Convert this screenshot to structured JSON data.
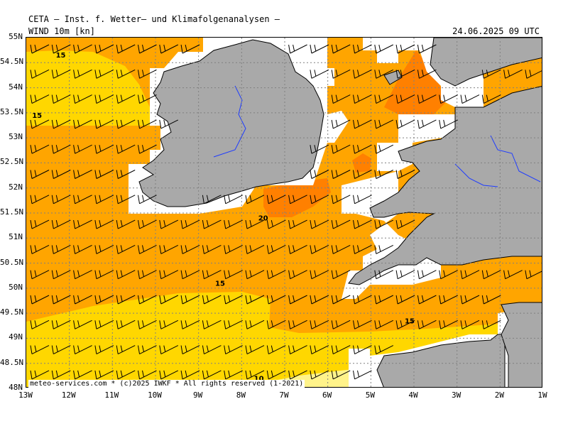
{
  "header": {
    "title": "CETA — Inst. f. Wetter— und Klimafolgenanalysen —",
    "parameter": "WIND 10m [kn]",
    "valid_time": "24.06.2025 09 UTC"
  },
  "credit": "meteo-services.com * (c)2025 IWKF * All rights reserved (1-2021)",
  "axes": {
    "lat_labels": [
      "55N",
      "54.5N",
      "54N",
      "53.5N",
      "53N",
      "52.5N",
      "52N",
      "51.5N",
      "51N",
      "50.5N",
      "50N",
      "49.5N",
      "49N",
      "48.5N",
      "48N"
    ],
    "lon_labels": [
      "13W",
      "12W",
      "11W",
      "10W",
      "9W",
      "8W",
      "7W",
      "6W",
      "5W",
      "4W",
      "3W",
      "2W",
      "1W"
    ],
    "lat_range": [
      48,
      55
    ],
    "lon_range": [
      -13,
      -1
    ]
  },
  "contour_labels": [
    {
      "text": "15",
      "lon": -12.2,
      "lat": 54.6
    },
    {
      "text": "15",
      "lon": -12.75,
      "lat": 53.4
    },
    {
      "text": "20",
      "lon": -7.5,
      "lat": 51.35
    },
    {
      "text": "15",
      "lon": -8.5,
      "lat": 50.05
    },
    {
      "text": "15",
      "lon": -4.1,
      "lat": 49.3
    },
    {
      "text": "10",
      "lon": -7.6,
      "lat": 48.15
    }
  ],
  "colors": {
    "land": "#a9a9a9",
    "unmasked": "#ffffff",
    "band_10_15": "#ffd700",
    "band_15_20": "#ffa500",
    "band_20_25": "#ff8000",
    "band_5_10": "#fff38a",
    "grid": "#808080",
    "rivers": "#1e3cff"
  },
  "wind_barbs": {
    "direction": "westerly",
    "typical_speed_kn": 15
  }
}
